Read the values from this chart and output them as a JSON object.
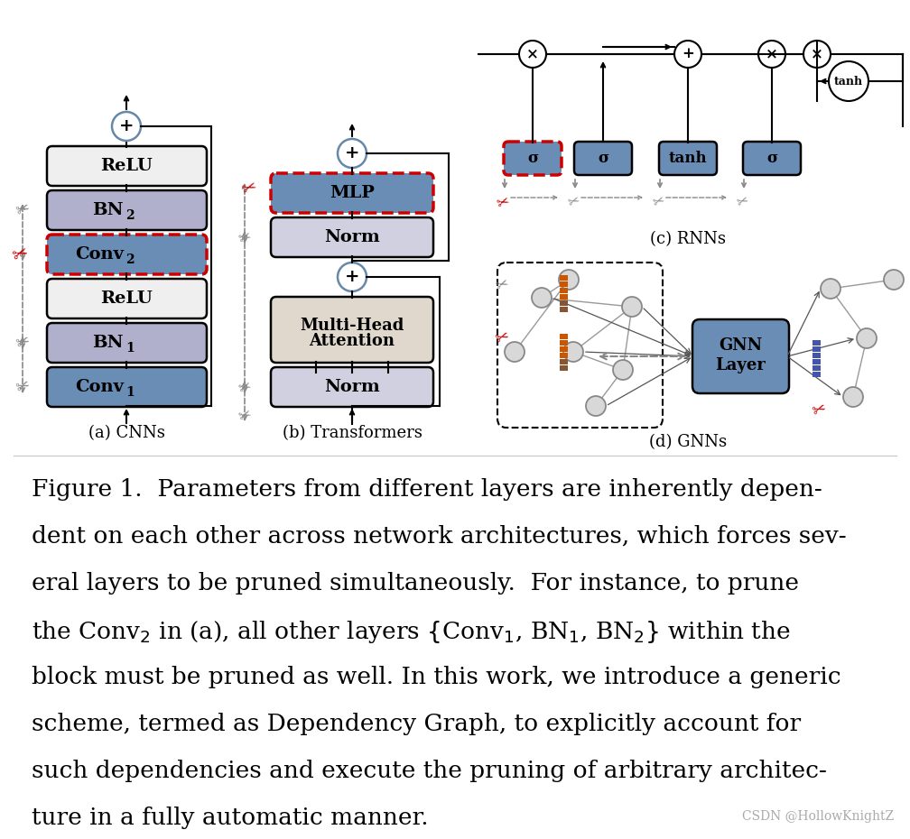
{
  "bg_color": "#ffffff",
  "fig_width": 10.08,
  "fig_height": 9.3,
  "watermark": "CSDN @HollowKnightZ",
  "subtitle_a": "(a) CNNs",
  "subtitle_b": "(b) Transformers",
  "subtitle_c": "(c) RNNs",
  "subtitle_d": "(d) GNNs",
  "color_relu": "#efefef",
  "color_bn": "#b0b0cc",
  "color_conv_blue": "#6a8db5",
  "color_mlp_blue": "#6a8db5",
  "color_norm": "#d0d0e0",
  "color_mha": "#e0d8cc",
  "color_rnn_blue": "#6a8db5",
  "color_red_dashed": "#cc0000",
  "color_scissors_red": "#cc0000",
  "color_scissors_gray": "#888888",
  "color_gnn_blue": "#6a8db5",
  "color_node": "#d8d8d8",
  "color_circle_edge": "#6688aa"
}
